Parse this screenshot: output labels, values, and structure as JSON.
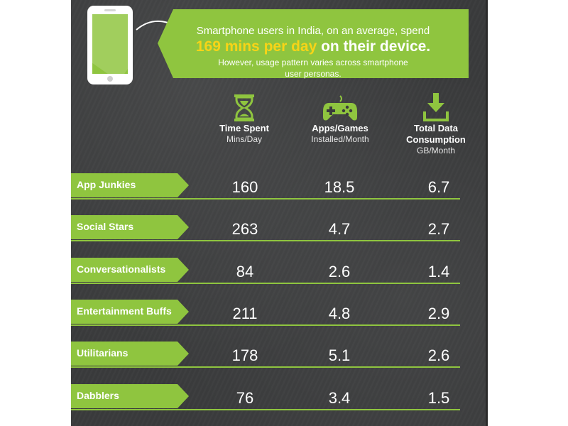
{
  "banner": {
    "line1": "Smartphone users in India, on an average, spend",
    "highlight": "169 mins per day",
    "line2_rest": " on their device.",
    "line3a": "However, usage pattern varies across smartphone",
    "line3b": "user personas."
  },
  "icons": {
    "phone": "smartphone-icon",
    "time": "hourglass-icon",
    "apps": "gamepad-icon",
    "data": "download-icon"
  },
  "colors": {
    "accent": "#8fc53f",
    "highlight": "#f7d417",
    "background": "#3a3b3c"
  },
  "chart_data": {
    "type": "table",
    "columns": [
      {
        "title": "Time Spent",
        "sub": "Mins/Day"
      },
      {
        "title": "Apps/Games",
        "sub": "Installed/Month"
      },
      {
        "title": "Total Data Consumption",
        "sub": "GB/Month"
      }
    ],
    "rows": [
      {
        "name": "App Junkies",
        "values": [
          "160",
          "18.5",
          "6.7"
        ]
      },
      {
        "name": "Social Stars",
        "values": [
          "263",
          "4.7",
          "2.7"
        ]
      },
      {
        "name": "Conversationalists",
        "values": [
          "84",
          "2.6",
          "1.4"
        ]
      },
      {
        "name": "Entertainment Buffs",
        "values": [
          "211",
          "4.8",
          "2.9"
        ]
      },
      {
        "name": "Utilitarians",
        "values": [
          "178",
          "5.1",
          "2.6"
        ]
      },
      {
        "name": "Dabblers",
        "values": [
          "76",
          "3.4",
          "1.5"
        ]
      }
    ]
  }
}
